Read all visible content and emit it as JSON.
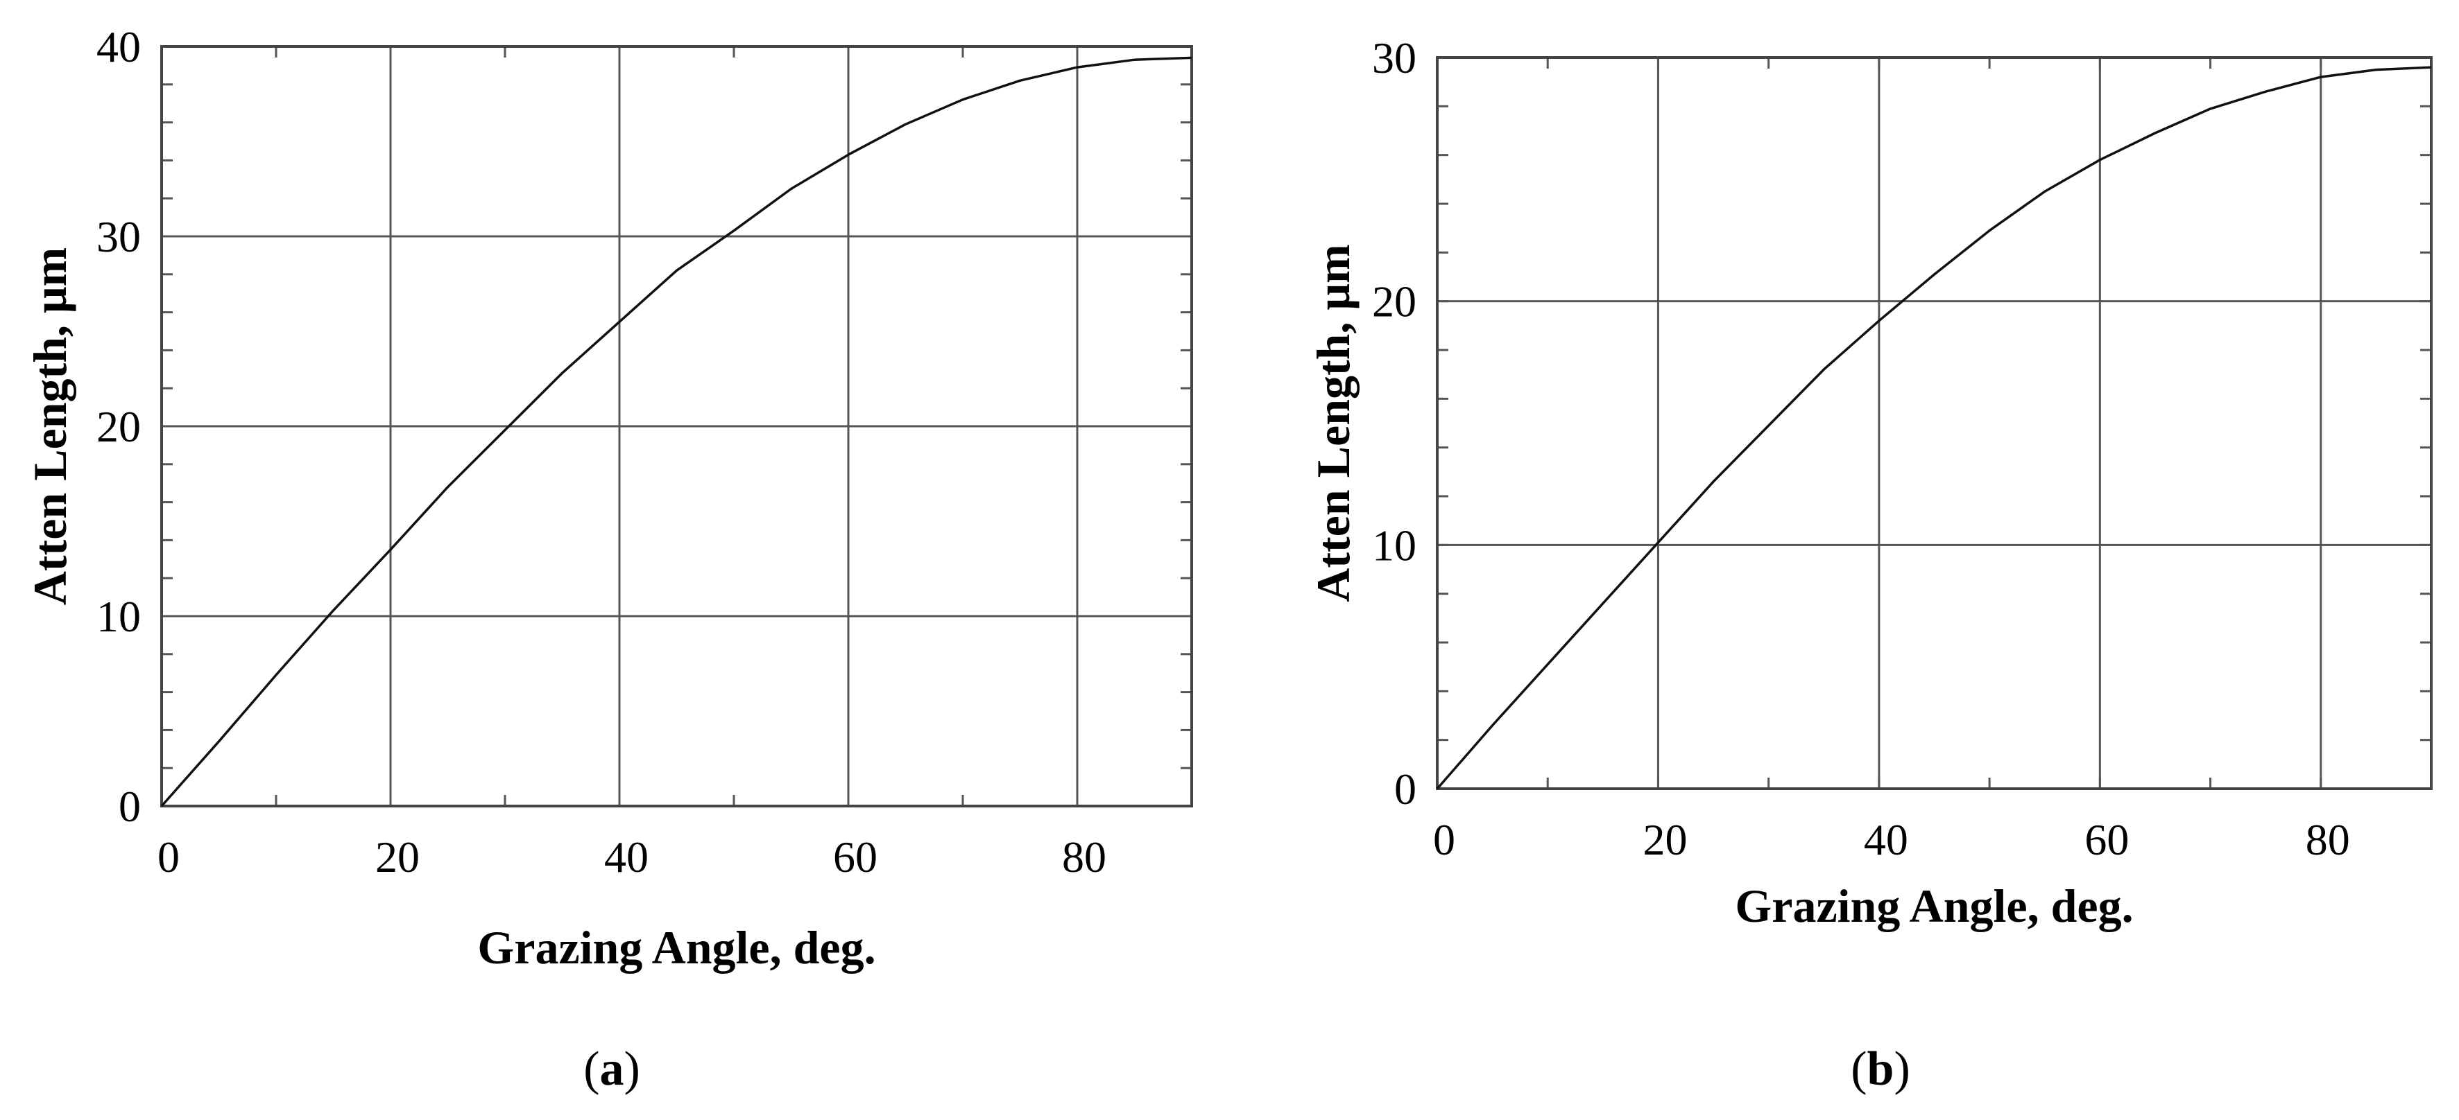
{
  "chart_data": [
    {
      "type": "line",
      "panel_label": "a",
      "xlabel": "Grazing Angle, deg.",
      "ylabel": "Atten Length, μm",
      "xlim": [
        0,
        90
      ],
      "ylim": [
        0,
        40
      ],
      "x_ticks": [
        0,
        20,
        40,
        60,
        80
      ],
      "y_ticks": [
        0,
        10,
        20,
        30,
        40
      ],
      "grid": true,
      "series": [
        {
          "x": [
            0,
            5,
            10,
            15,
            20,
            25,
            30,
            35,
            40,
            45,
            50,
            55,
            60,
            65,
            70,
            75,
            80,
            85,
            90
          ],
          "values": [
            0,
            3.4,
            6.9,
            10.3,
            13.5,
            16.8,
            19.8,
            22.8,
            25.5,
            28.2,
            30.3,
            32.5,
            34.3,
            35.9,
            37.2,
            38.2,
            38.9,
            39.3,
            39.4
          ]
        }
      ]
    },
    {
      "type": "line",
      "panel_label": "b",
      "xlabel": "Grazing Angle, deg.",
      "ylabel": "Atten Length, μm",
      "xlim": [
        0,
        90
      ],
      "ylim": [
        0,
        30
      ],
      "x_ticks": [
        0,
        20,
        40,
        60,
        80
      ],
      "y_ticks": [
        0,
        10,
        20,
        30
      ],
      "grid": true,
      "series": [
        {
          "x": [
            0,
            5,
            10,
            15,
            20,
            25,
            30,
            35,
            40,
            45,
            50,
            55,
            60,
            65,
            70,
            75,
            80,
            85,
            90
          ],
          "values": [
            0,
            2.6,
            5.1,
            7.6,
            10.1,
            12.6,
            14.9,
            17.2,
            19.2,
            21.1,
            22.9,
            24.5,
            25.8,
            26.9,
            27.9,
            28.6,
            29.2,
            29.5,
            29.6
          ]
        }
      ]
    }
  ]
}
